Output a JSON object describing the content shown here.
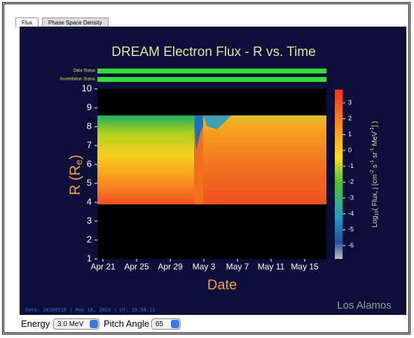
{
  "tabs": [
    "Flux",
    "Phase Space Density"
  ],
  "chart": {
    "title": "DREAM Electron Flux - R vs. Time",
    "status_labels": [
      "Data Status",
      "Assimilation Status"
    ],
    "y_label": [
      "R (R",
      "e",
      ")"
    ],
    "y_ticks": [
      1,
      2,
      3,
      4,
      5,
      6,
      7,
      8,
      9,
      10
    ],
    "x_ticks": [
      "Apr 21",
      "Apr 25",
      "Apr 29",
      "May 3",
      "May 7",
      "May 11",
      "May 15"
    ],
    "x_label": "Date",
    "colorbar_label": [
      "Log",
      "10",
      "( Flux, j [cm",
      "-2",
      " s",
      "-1",
      " sr",
      "-1",
      " MeV",
      "-1",
      "] )"
    ],
    "colorbar_ticks": [
      3,
      2,
      1,
      0,
      -1,
      -2,
      -3,
      -4,
      -5,
      -6
    ]
  },
  "footer": {
    "timestamp": "Date: 20100518 ( May 18, 2010 ) UT: 19:58:13",
    "logo": "Los Alamos"
  },
  "controls": {
    "energy_label": "Energy",
    "energy_value": "3.0 MeV",
    "pitch_label": "Pitch Angle",
    "pitch_value": "65"
  }
}
